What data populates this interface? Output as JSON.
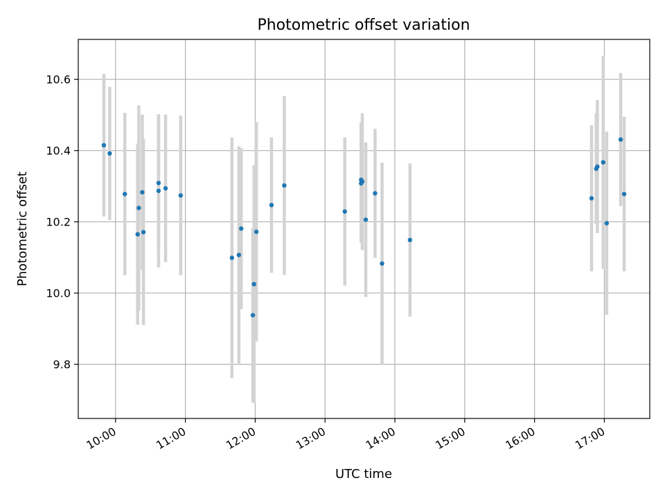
{
  "chart_data": {
    "type": "scatter",
    "title": "Photometric offset variation",
    "xlabel": "UTC time",
    "ylabel": "Photometric offset",
    "x_ticks": [
      "10:00",
      "11:00",
      "12:00",
      "13:00",
      "14:00",
      "15:00",
      "16:00",
      "17:00"
    ],
    "y_ticks": [
      "9.8",
      "10.0",
      "10.2",
      "10.4",
      "10.6"
    ],
    "y_tick_values": [
      9.8,
      10.0,
      10.2,
      10.4,
      10.6
    ],
    "xlim": [
      "09:28",
      "17:39"
    ],
    "ylim": [
      9.648,
      10.712
    ],
    "grid": true,
    "marker_color": "#1f77b4",
    "errorbar_color": "#d3d3d3",
    "points": [
      {
        "t": "09:50",
        "y": 10.415,
        "err": 0.2
      },
      {
        "t": "09:55",
        "y": 10.392,
        "err": 0.187
      },
      {
        "t": "10:08",
        "y": 10.278,
        "err": 0.228
      },
      {
        "t": "10:19",
        "y": 10.165,
        "err": 0.254
      },
      {
        "t": "10:20",
        "y": 10.239,
        "err": 0.288
      },
      {
        "t": "10:23",
        "y": 10.283,
        "err": 0.218
      },
      {
        "t": "10:24",
        "y": 10.171,
        "err": 0.261
      },
      {
        "t": "10:37",
        "y": 10.309,
        "err": 0.19
      },
      {
        "t": "10:37",
        "y": 10.287,
        "err": 0.215
      },
      {
        "t": "10:43",
        "y": 10.294,
        "err": 0.207
      },
      {
        "t": "10:56",
        "y": 10.274,
        "err": 0.224
      },
      {
        "t": "11:40",
        "y": 10.099,
        "err": 0.338
      },
      {
        "t": "11:46",
        "y": 10.107,
        "err": 0.305
      },
      {
        "t": "11:48",
        "y": 10.181,
        "err": 0.226
      },
      {
        "t": "11:58",
        "y": 9.938,
        "err": 0.244
      },
      {
        "t": "11:59",
        "y": 10.025,
        "err": 0.334
      },
      {
        "t": "12:01",
        "y": 10.172,
        "err": 0.308
      },
      {
        "t": "12:14",
        "y": 10.247,
        "err": 0.19
      },
      {
        "t": "12:25",
        "y": 10.302,
        "err": 0.251
      },
      {
        "t": "13:17",
        "y": 10.229,
        "err": 0.208
      },
      {
        "t": "13:31",
        "y": 10.318,
        "err": 0.161
      },
      {
        "t": "13:31",
        "y": 10.308,
        "err": 0.166
      },
      {
        "t": "13:32",
        "y": 10.313,
        "err": 0.192
      },
      {
        "t": "13:35",
        "y": 10.206,
        "err": 0.217
      },
      {
        "t": "13:43",
        "y": 10.28,
        "err": 0.181
      },
      {
        "t": "13:49",
        "y": 10.083,
        "err": 0.283
      },
      {
        "t": "14:13",
        "y": 10.149,
        "err": 0.215
      },
      {
        "t": "16:49",
        "y": 10.266,
        "err": 0.205
      },
      {
        "t": "16:53",
        "y": 10.349,
        "err": 0.156
      },
      {
        "t": "16:54",
        "y": 10.355,
        "err": 0.187
      },
      {
        "t": "16:59",
        "y": 10.367,
        "err": 0.299
      },
      {
        "t": "17:02",
        "y": 10.196,
        "err": 0.257
      },
      {
        "t": "17:14",
        "y": 10.431,
        "err": 0.187
      },
      {
        "t": "17:17",
        "y": 10.278,
        "err": 0.217
      }
    ]
  }
}
